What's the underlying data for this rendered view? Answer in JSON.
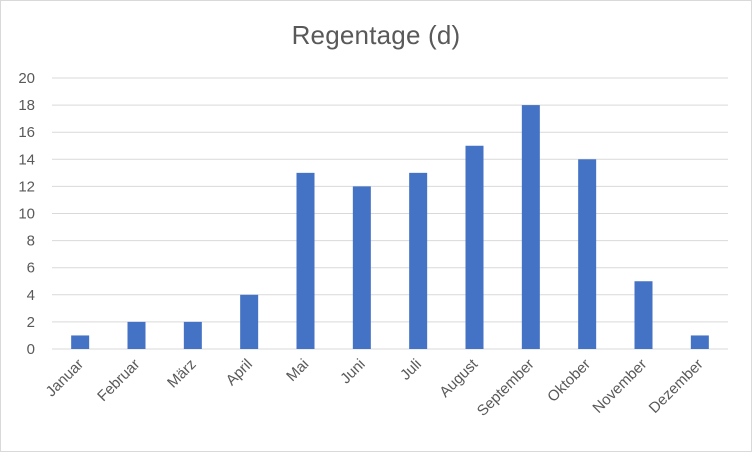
{
  "chart_data": {
    "type": "bar",
    "title": "Regentage (d)",
    "xlabel": "",
    "ylabel": "",
    "categories": [
      "Januar",
      "Februar",
      "März",
      "April",
      "Mai",
      "Juni",
      "Juli",
      "August",
      "September",
      "Oktober",
      "November",
      "Dezember"
    ],
    "series": [
      {
        "values": [
          1,
          2,
          2,
          4,
          13,
          12,
          13,
          15,
          18,
          14,
          5,
          1
        ]
      }
    ],
    "ylim": [
      0,
      20
    ],
    "yticks": [
      0,
      2,
      4,
      6,
      8,
      10,
      12,
      14,
      16,
      18,
      20
    ],
    "grid": true,
    "legend": "none",
    "colors": {
      "bar": "#4472c4",
      "grid": "#d9d9d9",
      "text": "#595959"
    }
  }
}
